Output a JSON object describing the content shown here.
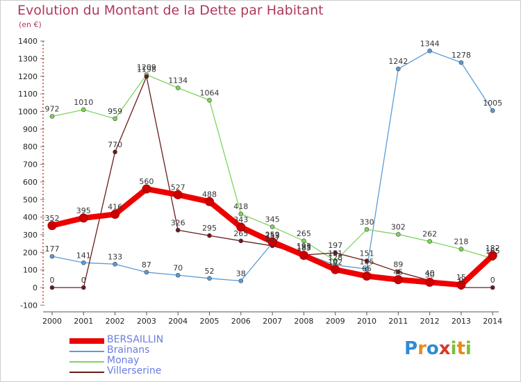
{
  "header": {
    "title": "Evolution du Montant de la Dette par Habitant",
    "subtitle": "(en €)"
  },
  "logo": {
    "text": "Proxiti",
    "letters": [
      "P",
      "r",
      "o",
      "x",
      "i",
      "t",
      "i"
    ],
    "colors": [
      "#2e8bd6",
      "#e88a1a",
      "#2e8bd6",
      "#d8382a",
      "#7bbf3a",
      "#e88a1a",
      "#7bbf3a"
    ]
  },
  "chart_data": {
    "type": "line",
    "title": "Evolution du Montant de la Dette par Habitant",
    "subtitle": "(en €)",
    "xlabel": "",
    "ylabel": "",
    "categories": [
      "2000",
      "2001",
      "2002",
      "2003",
      "2004",
      "2005",
      "2006",
      "2007",
      "2008",
      "2009",
      "2010",
      "2011",
      "2012",
      "2013",
      "2014"
    ],
    "yticks": [
      -100,
      0,
      100,
      200,
      300,
      400,
      500,
      600,
      700,
      800,
      900,
      1000,
      1100,
      1200,
      1300,
      1400
    ],
    "ylim": [
      -100,
      1400
    ],
    "grid": false,
    "legend": "bottom-left",
    "series": [
      {
        "name": "BERSAILLIN",
        "color": "#ee0000",
        "values": [
          352,
          395,
          416,
          560,
          527,
          488,
          343,
          259,
          183,
          102,
          65,
          45,
          30,
          15,
          182
        ]
      },
      {
        "name": "Brainans",
        "color": "#5b9bd5",
        "values": [
          177,
          141,
          133,
          87,
          70,
          52,
          38,
          253,
          193,
          128,
          105,
          1242,
          1344,
          1278,
          1005
        ]
      },
      {
        "name": "Monay",
        "color": "#7fd35c",
        "values": [
          972,
          1010,
          959,
          1209,
          1134,
          1064,
          418,
          345,
          265,
          151,
          330,
          302,
          262,
          218,
          165
        ]
      },
      {
        "name": "Villerserine",
        "color": "#6b1a1a",
        "values": [
          0,
          0,
          770,
          1198,
          326,
          295,
          265,
          237,
          185,
          197,
          151,
          89,
          40,
          0,
          0
        ]
      }
    ],
    "data_labels": [
      {
        "text": "352",
        "x": "2000",
        "y": 352,
        "series": "BERSAILLIN"
      },
      {
        "text": "395",
        "x": "2001",
        "y": 395,
        "series": "BERSAILLIN"
      },
      {
        "text": "416",
        "x": "2002",
        "y": 416,
        "series": "BERSAILLIN"
      },
      {
        "text": "560",
        "x": "2003",
        "y": 560,
        "series": "BERSAILLIN"
      },
      {
        "text": "527",
        "x": "2004",
        "y": 527,
        "series": "BERSAILLIN"
      },
      {
        "text": "488",
        "x": "2005",
        "y": 488,
        "series": "BERSAILLIN"
      },
      {
        "text": "343",
        "x": "2006",
        "y": 343,
        "series": "BERSAILLIN"
      },
      {
        "text": "259",
        "x": "2007",
        "y": 259,
        "series": "BERSAILLIN"
      },
      {
        "text": "183",
        "x": "2008",
        "y": 183,
        "series": "BERSAILLIN"
      },
      {
        "text": "102",
        "x": "2009",
        "y": 102,
        "series": "BERSAILLIN"
      },
      {
        "text": "65",
        "x": "2010",
        "y": 65,
        "series": "BERSAILLIN"
      },
      {
        "text": "45",
        "x": "2011",
        "y": 45,
        "series": "BERSAILLIN"
      },
      {
        "text": "30",
        "x": "2012",
        "y": 30,
        "series": "BERSAILLIN"
      },
      {
        "text": "15",
        "x": "2013",
        "y": 15,
        "series": "BERSAILLIN"
      },
      {
        "text": "182",
        "x": "2014",
        "y": 182,
        "series": "BERSAILLIN"
      },
      {
        "text": "177",
        "x": "2000",
        "y": 177,
        "series": "Brainans"
      },
      {
        "text": "141",
        "x": "2001",
        "y": 141,
        "series": "Brainans"
      },
      {
        "text": "133",
        "x": "2002",
        "y": 133,
        "series": "Brainans"
      },
      {
        "text": "87",
        "x": "2003",
        "y": 87,
        "series": "Brainans"
      },
      {
        "text": "70",
        "x": "2004",
        "y": 70,
        "series": "Brainans"
      },
      {
        "text": "52",
        "x": "2005",
        "y": 52,
        "series": "Brainans"
      },
      {
        "text": "38",
        "x": "2006",
        "y": 38,
        "series": "Brainans"
      },
      {
        "text": "253",
        "x": "2007",
        "y": 253,
        "series": "Brainans"
      },
      {
        "text": "193",
        "x": "2008",
        "y": 193,
        "series": "Brainans"
      },
      {
        "text": "128",
        "x": "2009",
        "y": 128,
        "series": "Brainans"
      },
      {
        "text": "105",
        "x": "2010",
        "y": 105,
        "series": "Brainans"
      },
      {
        "text": "1242",
        "x": "2011",
        "y": 1242,
        "series": "Brainans"
      },
      {
        "text": "1344",
        "x": "2012",
        "y": 1344,
        "series": "Brainans"
      },
      {
        "text": "1278",
        "x": "2013",
        "y": 1278,
        "series": "Brainans"
      },
      {
        "text": "1005",
        "x": "2014",
        "y": 1005,
        "series": "Brainans"
      },
      {
        "text": "972",
        "x": "2000",
        "y": 972,
        "series": "Monay"
      },
      {
        "text": "1010",
        "x": "2001",
        "y": 1010,
        "series": "Monay"
      },
      {
        "text": "959",
        "x": "2002",
        "y": 959,
        "series": "Monay"
      },
      {
        "text": "1209",
        "x": "2003",
        "y": 1209,
        "series": "Monay"
      },
      {
        "text": "1134",
        "x": "2004",
        "y": 1134,
        "series": "Monay"
      },
      {
        "text": "1064",
        "x": "2005",
        "y": 1064,
        "series": "Monay"
      },
      {
        "text": "418",
        "x": "2006",
        "y": 418,
        "series": "Monay"
      },
      {
        "text": "345",
        "x": "2007",
        "y": 345,
        "series": "Monay"
      },
      {
        "text": "265",
        "x": "2008",
        "y": 265,
        "series": "Monay"
      },
      {
        "text": "151",
        "x": "2009",
        "y": 151,
        "series": "Monay"
      },
      {
        "text": "330",
        "x": "2010",
        "y": 330,
        "series": "Monay"
      },
      {
        "text": "302",
        "x": "2011",
        "y": 302,
        "series": "Monay"
      },
      {
        "text": "262",
        "x": "2012",
        "y": 262,
        "series": "Monay"
      },
      {
        "text": "218",
        "x": "2013",
        "y": 218,
        "series": "Monay"
      },
      {
        "text": "165",
        "x": "2014",
        "y": 165,
        "series": "Monay"
      },
      {
        "text": "0",
        "x": "2000",
        "y": 0,
        "series": "Villerserine"
      },
      {
        "text": "0",
        "x": "2001",
        "y": 0,
        "series": "Villerserine"
      },
      {
        "text": "770",
        "x": "2002",
        "y": 770,
        "series": "Villerserine"
      },
      {
        "text": "1198",
        "x": "2003",
        "y": 1198,
        "series": "Villerserine"
      },
      {
        "text": "326",
        "x": "2004",
        "y": 326,
        "series": "Villerserine"
      },
      {
        "text": "295",
        "x": "2005",
        "y": 295,
        "series": "Villerserine"
      },
      {
        "text": "265",
        "x": "2006",
        "y": 265,
        "series": "Villerserine"
      },
      {
        "text": "237",
        "x": "2007",
        "y": 237,
        "series": "Villerserine"
      },
      {
        "text": "185",
        "x": "2008",
        "y": 185,
        "series": "Villerserine"
      },
      {
        "text": "197",
        "x": "2009",
        "y": 197,
        "series": "Villerserine"
      },
      {
        "text": "151",
        "x": "2010",
        "y": 151,
        "series": "Villerserine"
      },
      {
        "text": "89",
        "x": "2011",
        "y": 89,
        "series": "Villerserine"
      },
      {
        "text": "40",
        "x": "2012",
        "y": 40,
        "series": "Villerserine"
      },
      {
        "text": "0",
        "x": "2013",
        "y": 0,
        "series": "Villerserine"
      },
      {
        "text": "0",
        "x": "2014",
        "y": 0,
        "series": "Villerserine"
      }
    ]
  }
}
